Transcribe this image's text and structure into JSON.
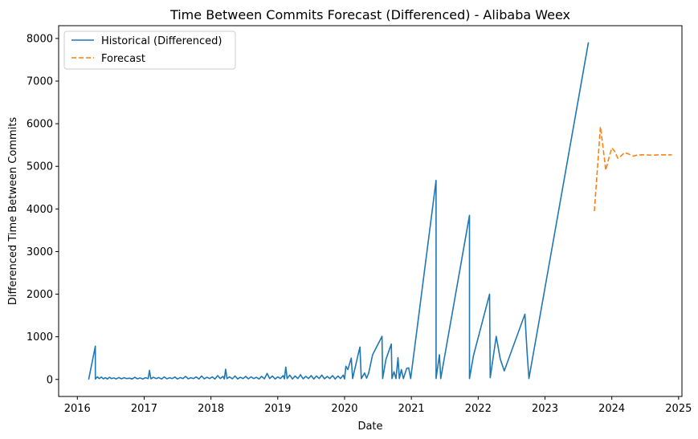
{
  "chart_data": {
    "type": "line",
    "title": "Time Between Commits Forecast (Differenced) - Alibaba Weex",
    "xlabel": "Date",
    "ylabel": "Differenced Time Between Commits",
    "xlim": [
      2015.72,
      2025.05
    ],
    "ylim": [
      -400,
      8300
    ],
    "x_ticks": [
      2016,
      2017,
      2018,
      2019,
      2020,
      2021,
      2022,
      2023,
      2024,
      2025
    ],
    "x_tick_labels": [
      "2016",
      "2017",
      "2018",
      "2019",
      "2020",
      "2021",
      "2022",
      "2023",
      "2024",
      "2025"
    ],
    "y_ticks": [
      0,
      1000,
      2000,
      3000,
      4000,
      5000,
      6000,
      7000,
      8000
    ],
    "y_tick_labels": [
      "0",
      "1000",
      "2000",
      "3000",
      "4000",
      "5000",
      "6000",
      "7000",
      "8000"
    ],
    "grid": false,
    "legend_position": "upper-left",
    "series": [
      {
        "name": "Historical (Differenced)",
        "color": "#1f77b4",
        "style": "solid",
        "points": [
          [
            2016.17,
            0
          ],
          [
            2016.27,
            780
          ],
          [
            2016.27,
            10
          ],
          [
            2016.3,
            60
          ],
          [
            2016.33,
            20
          ],
          [
            2016.36,
            55
          ],
          [
            2016.39,
            15
          ],
          [
            2016.42,
            40
          ],
          [
            2016.45,
            10
          ],
          [
            2016.48,
            50
          ],
          [
            2016.51,
            20
          ],
          [
            2016.55,
            35
          ],
          [
            2016.58,
            10
          ],
          [
            2016.62,
            45
          ],
          [
            2016.66,
            15
          ],
          [
            2016.7,
            40
          ],
          [
            2016.74,
            20
          ],
          [
            2016.78,
            30
          ],
          [
            2016.82,
            10
          ],
          [
            2016.86,
            50
          ],
          [
            2016.9,
            15
          ],
          [
            2016.94,
            35
          ],
          [
            2016.98,
            10
          ],
          [
            2017.02,
            40
          ],
          [
            2017.06,
            20
          ],
          [
            2017.08,
            210
          ],
          [
            2017.1,
            15
          ],
          [
            2017.14,
            50
          ],
          [
            2017.18,
            20
          ],
          [
            2017.22,
            45
          ],
          [
            2017.26,
            10
          ],
          [
            2017.3,
            60
          ],
          [
            2017.34,
            15
          ],
          [
            2017.38,
            40
          ],
          [
            2017.42,
            20
          ],
          [
            2017.46,
            55
          ],
          [
            2017.5,
            10
          ],
          [
            2017.54,
            45
          ],
          [
            2017.58,
            20
          ],
          [
            2017.62,
            70
          ],
          [
            2017.66,
            15
          ],
          [
            2017.7,
            40
          ],
          [
            2017.74,
            20
          ],
          [
            2017.78,
            60
          ],
          [
            2017.82,
            10
          ],
          [
            2017.86,
            80
          ],
          [
            2017.9,
            15
          ],
          [
            2017.94,
            50
          ],
          [
            2017.98,
            20
          ],
          [
            2018.02,
            60
          ],
          [
            2018.06,
            10
          ],
          [
            2018.1,
            90
          ],
          [
            2018.14,
            20
          ],
          [
            2018.18,
            70
          ],
          [
            2018.2,
            10
          ],
          [
            2018.22,
            240
          ],
          [
            2018.24,
            20
          ],
          [
            2018.28,
            60
          ],
          [
            2018.32,
            15
          ],
          [
            2018.36,
            80
          ],
          [
            2018.4,
            10
          ],
          [
            2018.44,
            50
          ],
          [
            2018.48,
            20
          ],
          [
            2018.52,
            70
          ],
          [
            2018.56,
            15
          ],
          [
            2018.6,
            60
          ],
          [
            2018.64,
            20
          ],
          [
            2018.68,
            50
          ],
          [
            2018.72,
            10
          ],
          [
            2018.76,
            70
          ],
          [
            2018.8,
            15
          ],
          [
            2018.84,
            140
          ],
          [
            2018.88,
            20
          ],
          [
            2018.92,
            80
          ],
          [
            2018.96,
            10
          ],
          [
            2019.0,
            60
          ],
          [
            2019.04,
            20
          ],
          [
            2019.08,
            90
          ],
          [
            2019.1,
            15
          ],
          [
            2019.12,
            290
          ],
          [
            2019.14,
            20
          ],
          [
            2019.18,
            100
          ],
          [
            2019.22,
            10
          ],
          [
            2019.26,
            80
          ],
          [
            2019.3,
            20
          ],
          [
            2019.34,
            110
          ],
          [
            2019.38,
            15
          ],
          [
            2019.42,
            70
          ],
          [
            2019.46,
            20
          ],
          [
            2019.5,
            90
          ],
          [
            2019.54,
            10
          ],
          [
            2019.58,
            80
          ],
          [
            2019.62,
            20
          ],
          [
            2019.66,
            100
          ],
          [
            2019.7,
            15
          ],
          [
            2019.74,
            70
          ],
          [
            2019.78,
            20
          ],
          [
            2019.82,
            90
          ],
          [
            2019.86,
            10
          ],
          [
            2019.9,
            80
          ],
          [
            2019.94,
            20
          ],
          [
            2019.98,
            100
          ],
          [
            2020.0,
            10
          ],
          [
            2020.02,
            310
          ],
          [
            2020.05,
            230
          ],
          [
            2020.1,
            500
          ],
          [
            2020.12,
            20
          ],
          [
            2020.2,
            560
          ],
          [
            2020.23,
            760
          ],
          [
            2020.25,
            20
          ],
          [
            2020.3,
            150
          ],
          [
            2020.33,
            30
          ],
          [
            2020.36,
            140
          ],
          [
            2020.42,
            580
          ],
          [
            2020.56,
            1010
          ],
          [
            2020.57,
            20
          ],
          [
            2020.62,
            470
          ],
          [
            2020.7,
            830
          ],
          [
            2020.71,
            20
          ],
          [
            2020.74,
            180
          ],
          [
            2020.77,
            20
          ],
          [
            2020.8,
            510
          ],
          [
            2020.82,
            20
          ],
          [
            2020.85,
            230
          ],
          [
            2020.88,
            20
          ],
          [
            2020.93,
            260
          ],
          [
            2020.96,
            270
          ],
          [
            2020.99,
            20
          ],
          [
            2021.37,
            4670
          ],
          [
            2021.37,
            20
          ],
          [
            2021.42,
            580
          ],
          [
            2021.44,
            20
          ],
          [
            2021.87,
            3850
          ],
          [
            2021.87,
            20
          ],
          [
            2021.93,
            560
          ],
          [
            2022.17,
            2000
          ],
          [
            2022.18,
            40
          ],
          [
            2022.27,
            1010
          ],
          [
            2022.33,
            480
          ],
          [
            2022.39,
            200
          ],
          [
            2022.7,
            1530
          ],
          [
            2022.73,
            700
          ],
          [
            2022.76,
            20
          ],
          [
            2023.65,
            7910
          ]
        ]
      },
      {
        "name": "Forecast",
        "color": "#ff7f0e",
        "style": "dashed",
        "points": [
          [
            2023.74,
            3950
          ],
          [
            2023.83,
            5930
          ],
          [
            2023.86,
            5560
          ],
          [
            2023.91,
            4910
          ],
          [
            2023.95,
            5160
          ],
          [
            2024.0,
            5430
          ],
          [
            2024.04,
            5360
          ],
          [
            2024.09,
            5190
          ],
          [
            2024.13,
            5230
          ],
          [
            2024.19,
            5320
          ],
          [
            2024.25,
            5290
          ],
          [
            2024.32,
            5240
          ],
          [
            2024.4,
            5270
          ],
          [
            2024.5,
            5270
          ],
          [
            2024.6,
            5260
          ],
          [
            2024.7,
            5270
          ],
          [
            2024.8,
            5270
          ],
          [
            2024.9,
            5270
          ]
        ]
      }
    ]
  }
}
